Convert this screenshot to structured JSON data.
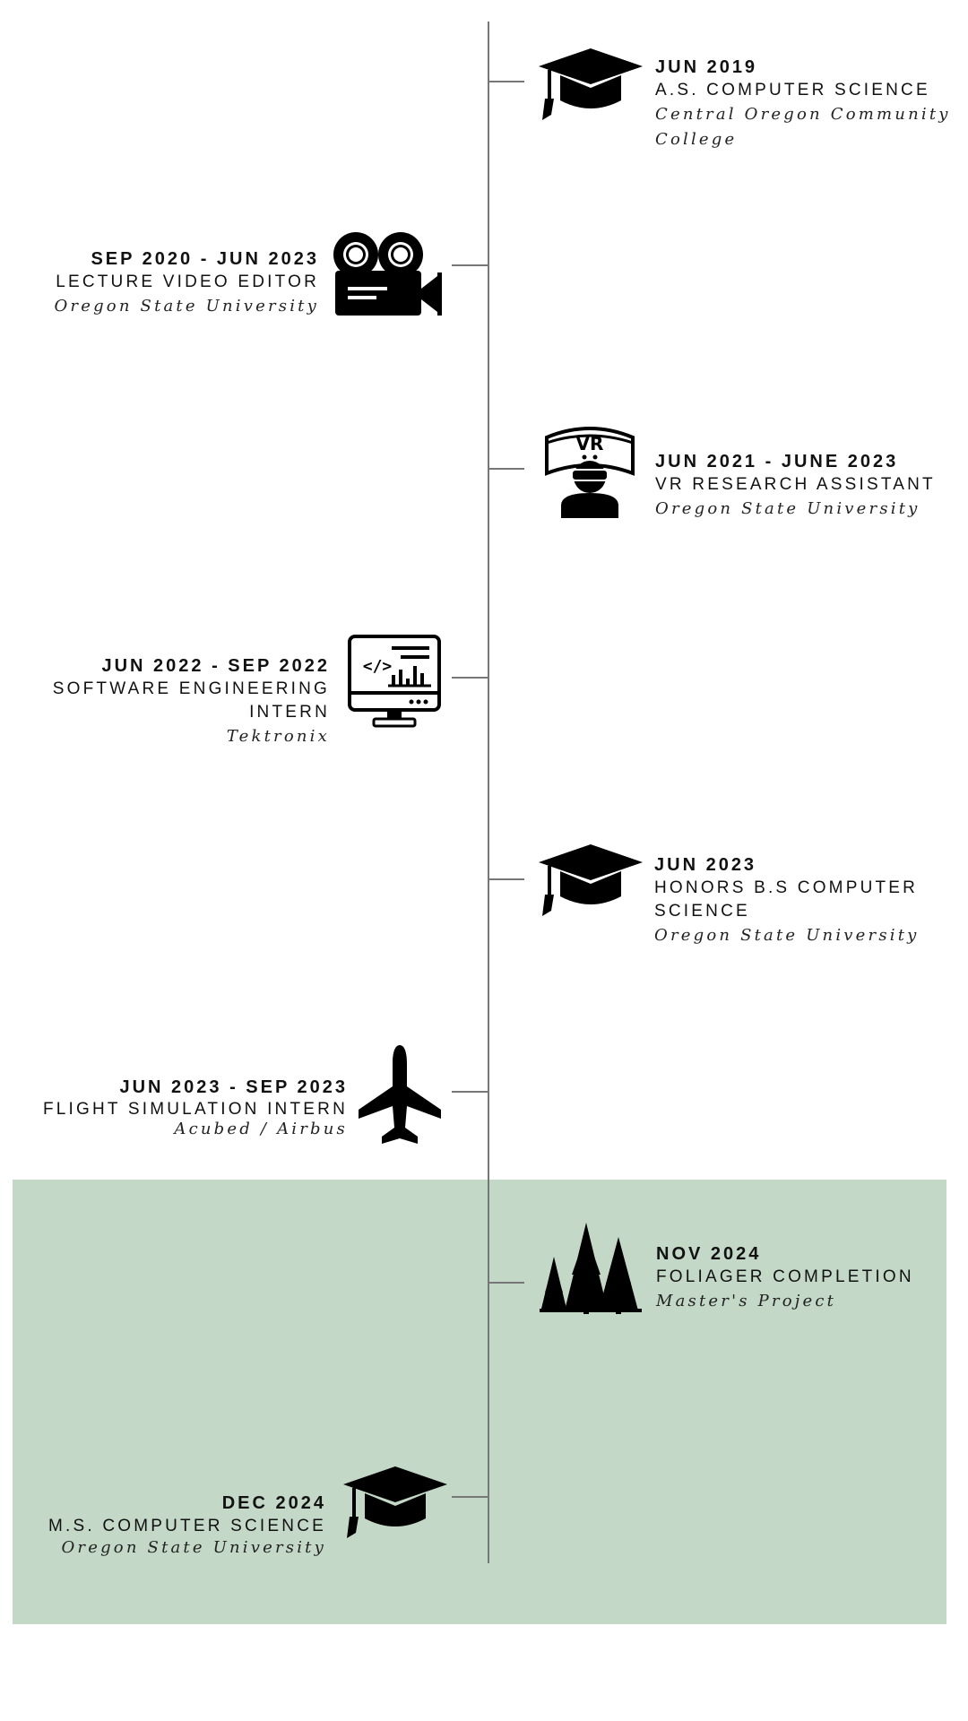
{
  "timeline": {
    "items": [
      {
        "date": "JUN 2019",
        "role": "A.S. COMPUTER SCIENCE",
        "org": "Central Oregon Community College",
        "icon": "graduation-cap-icon"
      },
      {
        "date": "SEP 2020 - JUN 2023",
        "role": "LECTURE VIDEO EDITOR",
        "org": "Oregon State University",
        "icon": "film-camera-icon"
      },
      {
        "date": "JUN 2021 - JUNE 2023",
        "role": "VR RESEARCH ASSISTANT",
        "org": "Oregon State University",
        "icon": "vr-headset-icon"
      },
      {
        "date": "JUN 2022 - SEP 2022",
        "role": "SOFTWARE ENGINEERING INTERN",
        "org": "Tektronix",
        "icon": "code-monitor-icon"
      },
      {
        "date": "JUN 2023",
        "role": "HONORS B.S COMPUTER SCIENCE",
        "org": "Oregon State University",
        "icon": "graduation-cap-icon"
      },
      {
        "date": "JUN 2023 - SEP 2023",
        "role": "FLIGHT SIMULATION INTERN",
        "org": "Acubed / Airbus",
        "icon": "airplane-icon"
      },
      {
        "date": "NOV 2024",
        "role": "FOLIAGER COMPLETION",
        "org": "Master's Project",
        "icon": "pine-trees-icon"
      },
      {
        "date": "DEC 2024",
        "role": "M.S. COMPUTER SCIENCE",
        "org": "Oregon State University",
        "icon": "graduation-cap-icon"
      }
    ]
  },
  "colors": {
    "highlight": "#c3d8c7",
    "axis": "#777777",
    "text": "#111111"
  }
}
